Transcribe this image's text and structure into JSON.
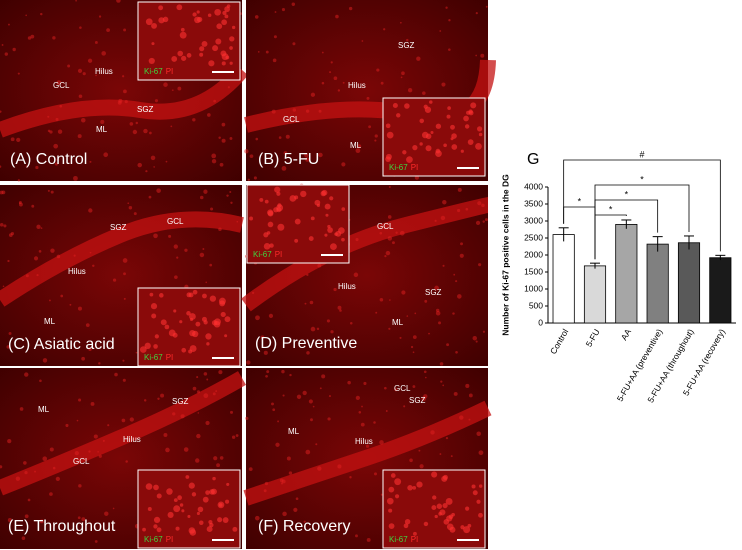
{
  "panels": [
    {
      "label": "(A) Control",
      "regions": [
        "GCL",
        "Hilus",
        "SGZ",
        "ML"
      ],
      "inset_legend": {
        "marker": "Ki-67",
        "stain": "PI"
      }
    },
    {
      "label": "(B) 5-FU",
      "regions": [
        "SGZ",
        "Hilus",
        "GCL",
        "ML"
      ],
      "inset_legend": {
        "marker": "Ki-67",
        "stain": "PI"
      }
    },
    {
      "label": "(C) Asiatic acid",
      "regions": [
        "SGZ",
        "GCL",
        "Hilus",
        "ML"
      ],
      "inset_legend": {
        "marker": "Ki-67",
        "stain": "PI"
      }
    },
    {
      "label": "(D) Preventive",
      "regions": [
        "GCL",
        "Hilus",
        "SGZ",
        "ML"
      ],
      "inset_legend": {
        "marker": "Ki-67",
        "stain": "PI"
      }
    },
    {
      "label": "(E) Throughout",
      "regions": [
        "ML",
        "SGZ",
        "Hilus",
        "GCL"
      ],
      "inset_legend": {
        "marker": "Ki-67",
        "stain": "PI"
      }
    },
    {
      "label": "(F) Recovery",
      "regions": [
        "ML",
        "GCL",
        "SGZ",
        "Hilus"
      ],
      "inset_legend": {
        "marker": "Ki-67",
        "stain": "PI"
      }
    }
  ],
  "chart_data": {
    "type": "bar",
    "panel_label": "G",
    "y_label": "Number of Ki-67 positive cells in the DG",
    "categories": [
      "Control",
      "5-FU",
      "AA",
      "5-FU+AA (preventive)",
      "5-FU+AA (throughout)",
      "5-FU+AA (recovery)"
    ],
    "values": [
      2600,
      1680,
      2900,
      2320,
      2360,
      1920
    ],
    "errors": [
      200,
      80,
      130,
      220,
      200,
      70
    ],
    "colors": [
      "#ffffff",
      "#d9d9d9",
      "#a6a6a6",
      "#808080",
      "#595959",
      "#1a1a1a"
    ],
    "ylim": [
      0,
      4000
    ],
    "yticks": [
      0,
      500,
      1000,
      1500,
      2000,
      2500,
      3000,
      3500,
      4000
    ],
    "significance": [
      "*",
      "*",
      "*",
      "*",
      "#"
    ]
  }
}
